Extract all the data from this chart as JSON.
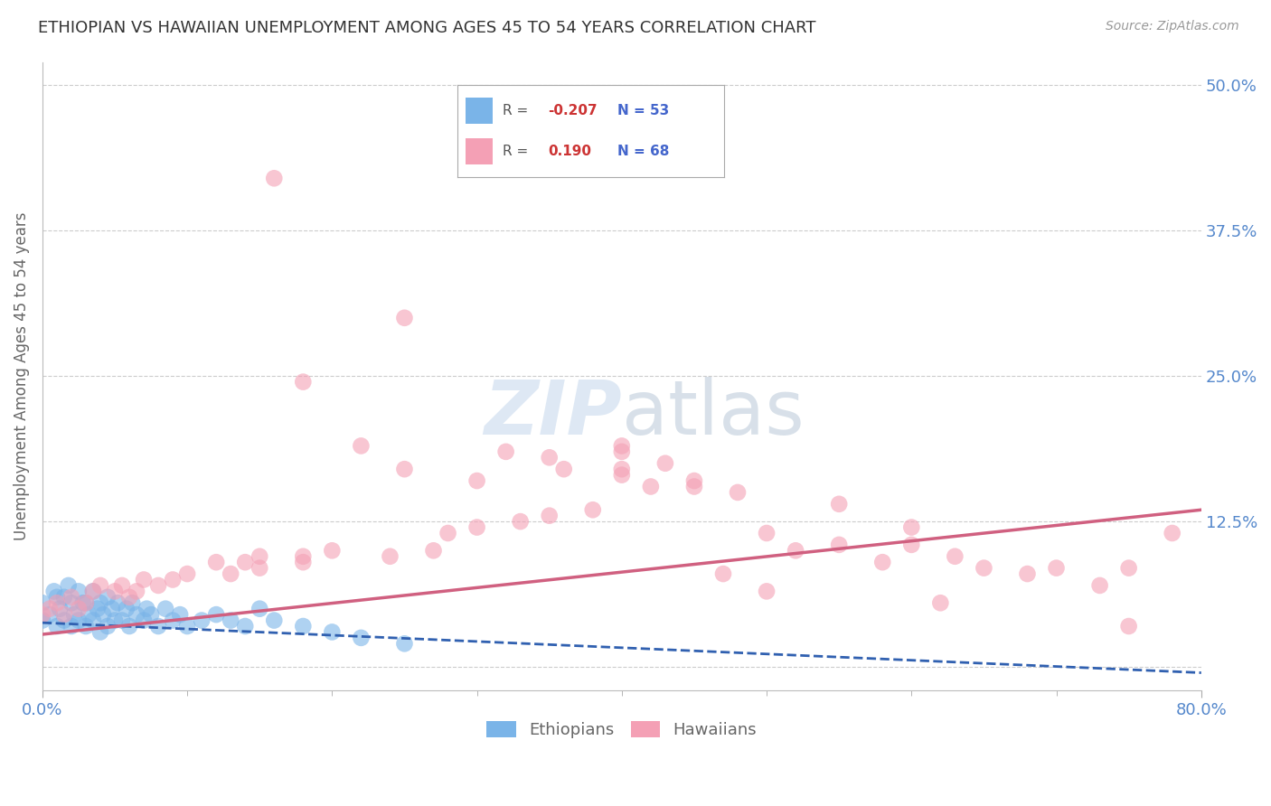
{
  "title": "ETHIOPIAN VS HAWAIIAN UNEMPLOYMENT AMONG AGES 45 TO 54 YEARS CORRELATION CHART",
  "source": "Source: ZipAtlas.com",
  "ylabel": "Unemployment Among Ages 45 to 54 years",
  "xlim": [
    0.0,
    0.8
  ],
  "ylim": [
    -0.02,
    0.52
  ],
  "xtick_positions": [
    0.0,
    0.8
  ],
  "xticklabels": [
    "0.0%",
    "80.0%"
  ],
  "ytick_positions": [
    0.0,
    0.125,
    0.25,
    0.375,
    0.5
  ],
  "ytick_labels": [
    "",
    "12.5%",
    "25.0%",
    "37.5%",
    "50.0%"
  ],
  "grid_color": "#cccccc",
  "background_color": "#ffffff",
  "legend_R1": "-0.207",
  "legend_N1": "53",
  "legend_R2": "0.190",
  "legend_N2": "68",
  "ethiopians_color": "#7ab4e8",
  "hawaiians_color": "#f4a0b5",
  "trend_ethiopians_color": "#3060b0",
  "trend_hawaiians_color": "#d06080",
  "title_color": "#333333",
  "axis_label_color": "#666666",
  "tick_label_color": "#5588cc",
  "source_color": "#999999",
  "watermark_color": "#d0dff0",
  "eth_trend_start_y": 0.038,
  "eth_trend_end_y": -0.005,
  "haw_trend_start_y": 0.028,
  "haw_trend_end_y": 0.135,
  "ethiopians_x": [
    0.0,
    0.0,
    0.005,
    0.008,
    0.01,
    0.01,
    0.012,
    0.015,
    0.015,
    0.018,
    0.02,
    0.02,
    0.022,
    0.025,
    0.025,
    0.028,
    0.03,
    0.03,
    0.032,
    0.035,
    0.035,
    0.038,
    0.04,
    0.04,
    0.042,
    0.045,
    0.045,
    0.048,
    0.05,
    0.052,
    0.055,
    0.058,
    0.06,
    0.062,
    0.065,
    0.07,
    0.072,
    0.075,
    0.08,
    0.085,
    0.09,
    0.095,
    0.1,
    0.11,
    0.12,
    0.13,
    0.14,
    0.15,
    0.16,
    0.18,
    0.2,
    0.22,
    0.25
  ],
  "ethiopians_y": [
    0.04,
    0.055,
    0.045,
    0.065,
    0.035,
    0.06,
    0.05,
    0.04,
    0.06,
    0.07,
    0.035,
    0.055,
    0.045,
    0.04,
    0.065,
    0.055,
    0.035,
    0.055,
    0.045,
    0.04,
    0.065,
    0.05,
    0.03,
    0.055,
    0.045,
    0.035,
    0.06,
    0.05,
    0.04,
    0.055,
    0.04,
    0.05,
    0.035,
    0.055,
    0.045,
    0.04,
    0.05,
    0.045,
    0.035,
    0.05,
    0.04,
    0.045,
    0.035,
    0.04,
    0.045,
    0.04,
    0.035,
    0.05,
    0.04,
    0.035,
    0.03,
    0.025,
    0.02
  ],
  "hawaiians_x": [
    0.0,
    0.005,
    0.01,
    0.015,
    0.02,
    0.025,
    0.03,
    0.035,
    0.04,
    0.05,
    0.055,
    0.06,
    0.065,
    0.07,
    0.08,
    0.09,
    0.1,
    0.12,
    0.13,
    0.14,
    0.15,
    0.16,
    0.15,
    0.18,
    0.18,
    0.2,
    0.22,
    0.24,
    0.25,
    0.27,
    0.28,
    0.3,
    0.3,
    0.32,
    0.33,
    0.35,
    0.36,
    0.38,
    0.4,
    0.4,
    0.42,
    0.43,
    0.45,
    0.47,
    0.48,
    0.5,
    0.5,
    0.52,
    0.55,
    0.55,
    0.58,
    0.6,
    0.62,
    0.63,
    0.65,
    0.68,
    0.7,
    0.73,
    0.75,
    0.78,
    0.18,
    0.25,
    0.35,
    0.4,
    0.45,
    0.6,
    0.75,
    0.4
  ],
  "hawaiians_y": [
    0.045,
    0.05,
    0.055,
    0.045,
    0.06,
    0.05,
    0.055,
    0.065,
    0.07,
    0.065,
    0.07,
    0.06,
    0.065,
    0.075,
    0.07,
    0.075,
    0.08,
    0.09,
    0.08,
    0.09,
    0.095,
    0.42,
    0.085,
    0.09,
    0.095,
    0.1,
    0.19,
    0.095,
    0.3,
    0.1,
    0.115,
    0.12,
    0.16,
    0.185,
    0.125,
    0.13,
    0.17,
    0.135,
    0.185,
    0.165,
    0.155,
    0.175,
    0.155,
    0.08,
    0.15,
    0.065,
    0.115,
    0.1,
    0.14,
    0.105,
    0.09,
    0.105,
    0.055,
    0.095,
    0.085,
    0.08,
    0.085,
    0.07,
    0.035,
    0.115,
    0.245,
    0.17,
    0.18,
    0.17,
    0.16,
    0.12,
    0.085,
    0.19
  ]
}
